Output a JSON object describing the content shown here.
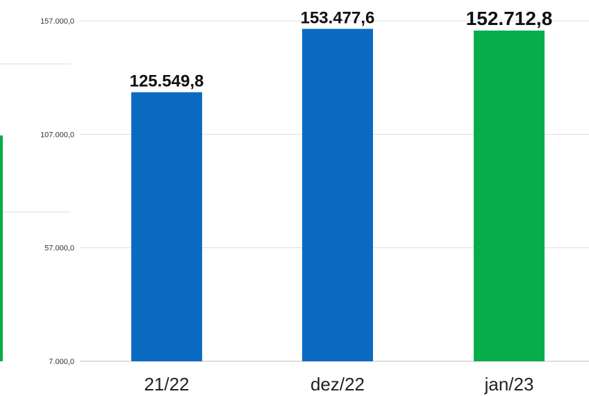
{
  "chart_data": {
    "type": "bar",
    "categories": [
      "21/22",
      "dez/22",
      "jan/23"
    ],
    "values": [
      125549.8,
      153477.6,
      152712.8
    ],
    "value_labels": [
      "125.549,8",
      "153.477,6",
      "152.712,8"
    ],
    "bar_colors": [
      "#0b6bc2",
      "#0b6bc2",
      "#06ad4b"
    ],
    "ylim": [
      7000,
      157000
    ],
    "yticks": [
      7000,
      57000,
      107000,
      157000
    ],
    "ytick_labels": [
      "7.000,0",
      "57.000,0",
      "107.000,0",
      "157.000,0"
    ],
    "grid": true,
    "title": "",
    "xlabel": "",
    "ylabel": ""
  }
}
